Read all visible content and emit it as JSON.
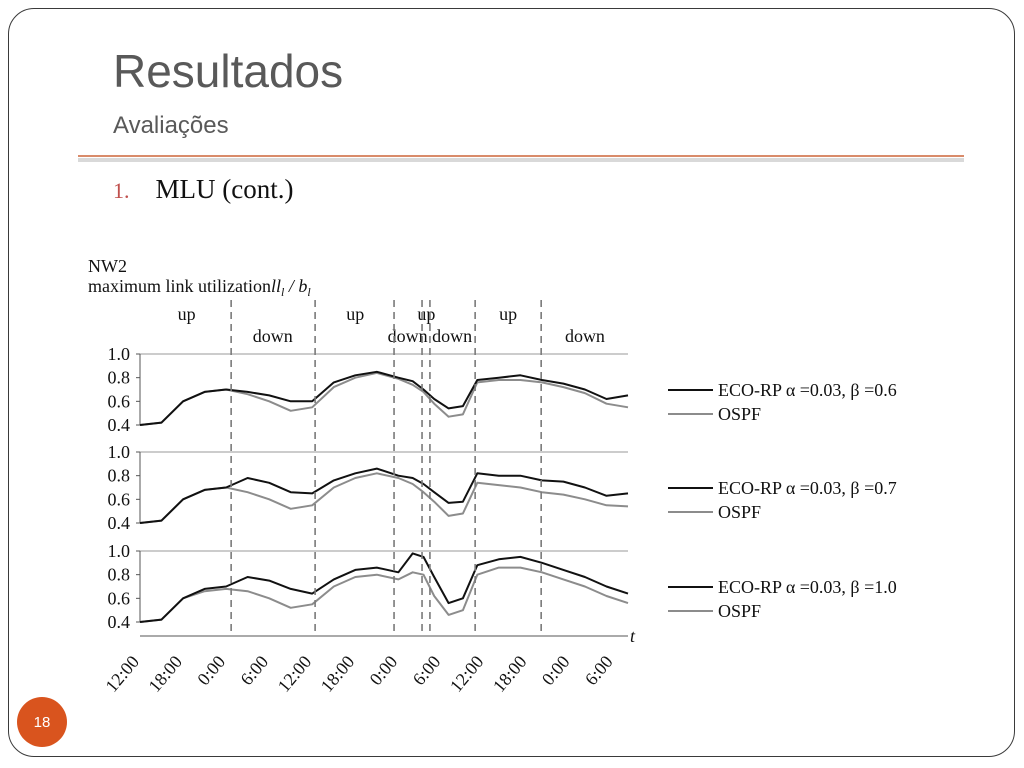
{
  "slide": {
    "title": "Resultados",
    "subtitle": "Avaliações",
    "bullet_number": "1.",
    "bullet_text": "MLU (cont.)",
    "page_number": "18"
  },
  "colors": {
    "accent": "#d9541e",
    "rule": "#d98b6a",
    "eco": "#111111",
    "ospf": "#8c8c8c"
  },
  "chart_data": {
    "type": "line",
    "title": "NW2",
    "ylabel": "maximum link utilization",
    "ylabel_formula": "ll",
    "ylabel_formula_sub": "l",
    "ylabel_formula_div": " / b",
    "ylabel_formula_sub2": "l",
    "xlabel": "t",
    "x_ticks": [
      "12:00",
      "18:00",
      "0:00",
      "6:00",
      "12:00",
      "18:00",
      "0:00",
      "6:00",
      "12:00",
      "18:00",
      "0:00",
      "6:00"
    ],
    "x_range_hours": [
      0,
      68
    ],
    "y_ticks": [
      "1.0",
      "0.8",
      "0.6",
      "0.4"
    ],
    "ylim": [
      0.4,
      1.0
    ],
    "grid": "horizontal at 1.0",
    "legend_position": "right",
    "phase_boundaries_hours": [
      12.7,
      24.4,
      35.4,
      39.3,
      40.4,
      46.7,
      55.9
    ],
    "phase_labels": [
      {
        "text": "up",
        "hour": 6.5,
        "row": "top"
      },
      {
        "text": "down",
        "hour": 18.5,
        "row": "bottom"
      },
      {
        "text": "up",
        "hour": 30,
        "row": "top"
      },
      {
        "text": "down",
        "hour": 37.3,
        "row": "bottom"
      },
      {
        "text": "up",
        "hour": 39.9,
        "row": "top"
      },
      {
        "text": "down",
        "hour": 43.5,
        "row": "bottom"
      },
      {
        "text": "up",
        "hour": 51.3,
        "row": "top"
      },
      {
        "text": "down",
        "hour": 62,
        "row": "bottom"
      }
    ],
    "x": [
      0,
      3,
      6,
      9,
      12,
      15,
      18,
      21,
      24,
      27,
      30,
      33,
      36,
      38,
      39.5,
      41,
      43,
      45,
      47,
      50,
      53,
      56,
      59,
      62,
      65,
      68
    ],
    "panels": [
      {
        "series": [
          {
            "name": "ECO-RP α =0.03,  β =0.6",
            "values": [
              0.4,
              0.42,
              0.6,
              0.68,
              0.7,
              0.68,
              0.65,
              0.6,
              0.6,
              0.76,
              0.82,
              0.85,
              0.8,
              0.77,
              0.7,
              0.62,
              0.54,
              0.56,
              0.78,
              0.8,
              0.82,
              0.78,
              0.75,
              0.7,
              0.62,
              0.65
            ]
          },
          {
            "name": "OSPF",
            "values": [
              0.4,
              0.42,
              0.6,
              0.68,
              0.7,
              0.66,
              0.6,
              0.52,
              0.55,
              0.72,
              0.8,
              0.84,
              0.79,
              0.74,
              0.68,
              0.58,
              0.47,
              0.49,
              0.76,
              0.78,
              0.78,
              0.76,
              0.72,
              0.67,
              0.58,
              0.55
            ]
          }
        ]
      },
      {
        "series": [
          {
            "name": "ECO-RP α =0.03,  β =0.7",
            "values": [
              0.4,
              0.42,
              0.6,
              0.68,
              0.7,
              0.78,
              0.74,
              0.66,
              0.65,
              0.76,
              0.82,
              0.86,
              0.8,
              0.78,
              0.73,
              0.66,
              0.57,
              0.58,
              0.82,
              0.8,
              0.8,
              0.76,
              0.75,
              0.7,
              0.63,
              0.65
            ]
          },
          {
            "name": "OSPF",
            "values": [
              0.4,
              0.42,
              0.6,
              0.68,
              0.7,
              0.66,
              0.6,
              0.52,
              0.55,
              0.7,
              0.78,
              0.82,
              0.78,
              0.73,
              0.66,
              0.58,
              0.46,
              0.48,
              0.74,
              0.72,
              0.7,
              0.66,
              0.64,
              0.6,
              0.55,
              0.54
            ]
          }
        ]
      },
      {
        "series": [
          {
            "name": "ECO-RP α =0.03,  β =1.0",
            "values": [
              0.4,
              0.42,
              0.6,
              0.68,
              0.7,
              0.78,
              0.75,
              0.68,
              0.64,
              0.76,
              0.84,
              0.86,
              0.82,
              0.98,
              0.95,
              0.78,
              0.56,
              0.6,
              0.88,
              0.93,
              0.95,
              0.9,
              0.84,
              0.78,
              0.7,
              0.64
            ]
          },
          {
            "name": "OSPF",
            "values": [
              0.4,
              0.42,
              0.6,
              0.66,
              0.68,
              0.66,
              0.6,
              0.52,
              0.55,
              0.7,
              0.78,
              0.8,
              0.76,
              0.82,
              0.8,
              0.62,
              0.46,
              0.5,
              0.8,
              0.86,
              0.86,
              0.82,
              0.76,
              0.7,
              0.62,
              0.56
            ]
          }
        ]
      }
    ]
  }
}
